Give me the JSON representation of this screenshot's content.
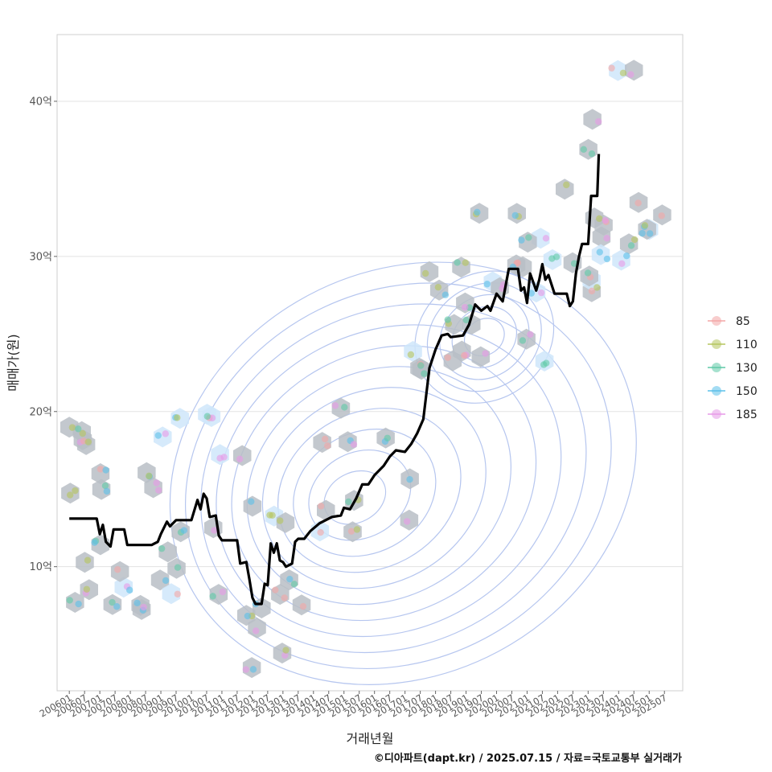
{
  "chart_data": {
    "type": "scatter",
    "title": "",
    "xlabel": "거래년월",
    "ylabel": "매매가(원)",
    "caption": "©디아파트(dapt.kr) / 2025.07.15 / 자료=국토교통부 실거래가",
    "x_ticks": [
      "200601",
      "200607",
      "200701",
      "200707",
      "200801",
      "200807",
      "200901",
      "200907",
      "201001",
      "201007",
      "201101",
      "201107",
      "201201",
      "201207",
      "201301",
      "201307",
      "201401",
      "201407",
      "201501",
      "201507",
      "201601",
      "201607",
      "201701",
      "201707",
      "201801",
      "201807",
      "201901",
      "201907",
      "202001",
      "202007",
      "202101",
      "202107",
      "202201",
      "202207",
      "202301",
      "202307",
      "202401",
      "202407",
      "202501",
      "202507"
    ],
    "y_ticks": [
      {
        "value": 10,
        "label": "10억"
      },
      {
        "value": 20,
        "label": "20억"
      },
      {
        "value": 30,
        "label": "30억"
      },
      {
        "value": 40,
        "label": "40억"
      }
    ],
    "xlim": [
      2005.6,
      2026.1
    ],
    "ylim": [
      2,
      44.3
    ],
    "grid": "horizontal",
    "legend_position": "right",
    "legend": [
      {
        "name": "85",
        "color": "#f4a6a6"
      },
      {
        "name": "110",
        "color": "#b5c55e"
      },
      {
        "name": "130",
        "color": "#5fc9a7"
      },
      {
        "name": "150",
        "color": "#5bc0ea"
      },
      {
        "name": "185",
        "color": "#e79ae8"
      }
    ],
    "trend_line": {
      "name": "moving average",
      "color": "#000000",
      "points": [
        [
          2006.0,
          13.1
        ],
        [
          2006.9,
          13.1
        ],
        [
          2007.0,
          12.1
        ],
        [
          2007.1,
          12.7
        ],
        [
          2007.2,
          11.6
        ],
        [
          2007.35,
          11.3
        ],
        [
          2007.45,
          12.4
        ],
        [
          2007.8,
          12.4
        ],
        [
          2007.9,
          11.4
        ],
        [
          2008.7,
          11.4
        ],
        [
          2008.8,
          11.5
        ],
        [
          2008.9,
          11.6
        ],
        [
          2009.0,
          12.1
        ],
        [
          2009.2,
          12.9
        ],
        [
          2009.3,
          12.6
        ],
        [
          2009.5,
          13.0
        ],
        [
          2010.0,
          13.0
        ],
        [
          2010.2,
          14.3
        ],
        [
          2010.3,
          13.7
        ],
        [
          2010.4,
          14.7
        ],
        [
          2010.5,
          14.4
        ],
        [
          2010.6,
          13.2
        ],
        [
          2010.8,
          13.3
        ],
        [
          2010.9,
          12.0
        ],
        [
          2011.0,
          11.7
        ],
        [
          2011.5,
          11.7
        ],
        [
          2011.6,
          10.2
        ],
        [
          2011.8,
          10.3
        ],
        [
          2011.9,
          9.2
        ],
        [
          2012.0,
          8.0
        ],
        [
          2012.1,
          7.6
        ],
        [
          2012.3,
          7.6
        ],
        [
          2012.4,
          8.9
        ],
        [
          2012.5,
          8.8
        ],
        [
          2012.6,
          11.5
        ],
        [
          2012.7,
          10.9
        ],
        [
          2012.8,
          11.5
        ],
        [
          2012.9,
          10.4
        ],
        [
          2013.0,
          10.3
        ],
        [
          2013.1,
          10.0
        ],
        [
          2013.3,
          10.2
        ],
        [
          2013.4,
          11.6
        ],
        [
          2013.5,
          11.8
        ],
        [
          2013.7,
          11.8
        ],
        [
          2013.9,
          12.3
        ],
        [
          2014.2,
          12.8
        ],
        [
          2014.6,
          13.2
        ],
        [
          2014.9,
          13.3
        ],
        [
          2015.0,
          13.8
        ],
        [
          2015.2,
          13.7
        ],
        [
          2015.4,
          14.4
        ],
        [
          2015.6,
          15.3
        ],
        [
          2015.8,
          15.3
        ],
        [
          2016.0,
          15.9
        ],
        [
          2016.3,
          16.5
        ],
        [
          2016.5,
          17.1
        ],
        [
          2016.7,
          17.5
        ],
        [
          2017.0,
          17.4
        ],
        [
          2017.2,
          17.9
        ],
        [
          2017.4,
          18.6
        ],
        [
          2017.6,
          19.5
        ],
        [
          2017.8,
          22.8
        ],
        [
          2018.0,
          24.0
        ],
        [
          2018.2,
          24.9
        ],
        [
          2018.4,
          25.0
        ],
        [
          2018.5,
          24.8
        ],
        [
          2018.9,
          24.9
        ],
        [
          2019.1,
          25.6
        ],
        [
          2019.3,
          26.9
        ],
        [
          2019.5,
          26.5
        ],
        [
          2019.7,
          26.8
        ],
        [
          2019.8,
          26.5
        ],
        [
          2020.0,
          27.6
        ],
        [
          2020.2,
          27.1
        ],
        [
          2020.4,
          29.2
        ],
        [
          2020.7,
          29.2
        ],
        [
          2020.8,
          27.8
        ],
        [
          2020.9,
          28.0
        ],
        [
          2021.0,
          27.0
        ],
        [
          2021.1,
          28.9
        ],
        [
          2021.3,
          27.8
        ],
        [
          2021.4,
          28.5
        ],
        [
          2021.5,
          29.5
        ],
        [
          2021.6,
          28.5
        ],
        [
          2021.7,
          28.8
        ],
        [
          2021.9,
          27.6
        ],
        [
          2022.3,
          27.6
        ],
        [
          2022.4,
          26.8
        ],
        [
          2022.5,
          27.1
        ],
        [
          2022.6,
          28.9
        ],
        [
          2022.7,
          30.0
        ],
        [
          2022.8,
          30.8
        ],
        [
          2023.0,
          30.8
        ],
        [
          2023.1,
          33.9
        ],
        [
          2023.3,
          33.9
        ],
        [
          2023.35,
          36.6
        ]
      ],
      "note_x": "years",
      "note_y": "억"
    }
  }
}
